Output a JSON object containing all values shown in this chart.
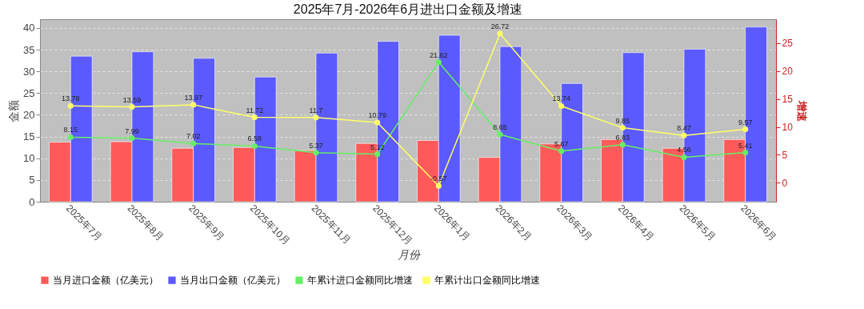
{
  "chart_data": {
    "type": "bar",
    "title": "2025年7月-2026年6月进出口金额及增速",
    "xlabel": "月份",
    "ylabel": "金额",
    "y2label": "增速",
    "categories": [
      "2025年7月",
      "2025年8月",
      "2025年9月",
      "2025年10月",
      "2025年11月",
      "2025年12月",
      "2026年1月",
      "2026年2月",
      "2026年3月",
      "2026年4月",
      "2026年5月",
      "2026年6月"
    ],
    "series": [
      {
        "name": "当月进口金额（亿美元）",
        "color": "#ff5a5a",
        "values": [
          13.7,
          13.8,
          12.3,
          12.5,
          11.8,
          13.4,
          14.1,
          10.2,
          13.3,
          14.3,
          12.3,
          14.3
        ]
      },
      {
        "name": "当月出口金额（亿美元）",
        "color": "#5a5aff",
        "values": [
          33.5,
          34.5,
          33.0,
          28.7,
          34.2,
          36.9,
          38.3,
          35.7,
          27.2,
          34.3,
          35.1,
          40.2
        ]
      },
      {
        "name": "年累计进口金额同比增速",
        "type": "line",
        "axis": "y2",
        "color": "#66ee66",
        "values": [
          8.15,
          7.99,
          7.02,
          6.58,
          5.37,
          5.12,
          21.62,
          8.65,
          5.67,
          6.83,
          4.56,
          5.41
        ],
        "value_labels": [
          "8.15",
          "7.99",
          "7.02",
          "6.58",
          "5.37",
          "5.12",
          "21.62",
          "8.65",
          "5.67",
          "6.83",
          "4.56",
          "5.41"
        ]
      },
      {
        "name": "年累计出口金额同比增速",
        "type": "line",
        "axis": "y2",
        "color": "#ffff66",
        "values": [
          13.78,
          13.59,
          13.97,
          11.72,
          11.7,
          10.79,
          -0.57,
          26.72,
          13.74,
          9.85,
          8.47,
          9.57
        ],
        "value_labels": [
          "13.78",
          "13.59",
          "13.97",
          "11.72",
          "11.7",
          "10.79",
          "-0.57",
          "26.72",
          "13.74",
          "9.85",
          "8.47",
          "9.57"
        ]
      }
    ],
    "ylim": [
      0,
      42
    ],
    "yticks": [
      0,
      5,
      10,
      15,
      20,
      25,
      30,
      35,
      40
    ],
    "y2lim": [
      -3.4,
      29.3
    ],
    "y2ticks": [
      0,
      5,
      10,
      15,
      20,
      25
    ],
    "grid": "y",
    "legend": "bottom",
    "marker": "circle"
  }
}
